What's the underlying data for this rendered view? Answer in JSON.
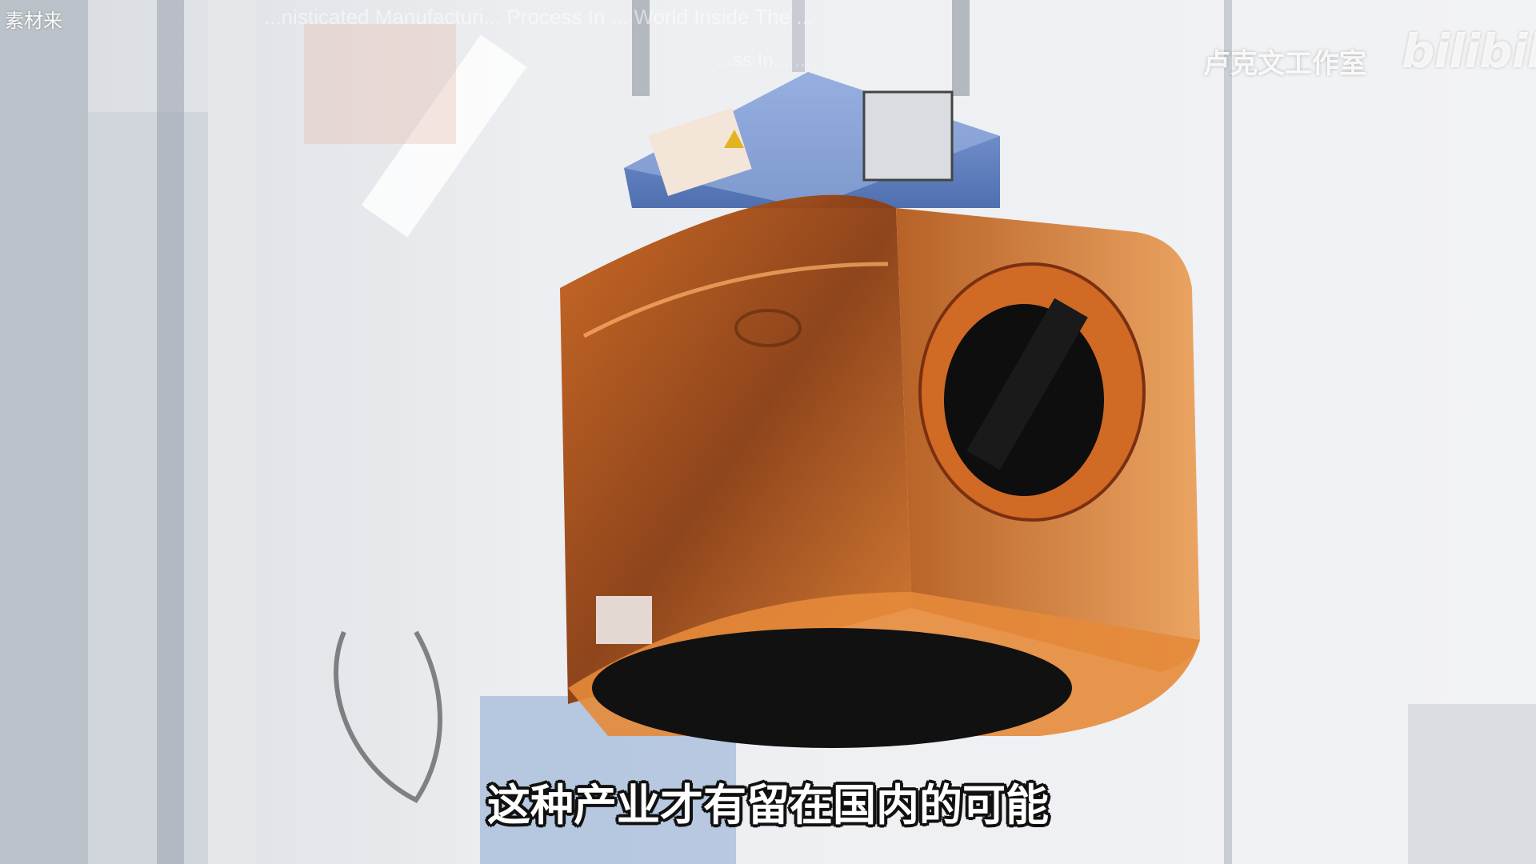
{
  "frame": {
    "source_fragment": "素材来",
    "title_overlay_line1": "...nisticated Manufacturi... Process In ... World Inside The ...",
    "title_overlay_line2": "...ss In... ...",
    "channel_watermark": "卢克文工作室",
    "platform_logo": "bilibili",
    "subtitle": "这种产业才有留在国内的可能"
  },
  "colors": {
    "pod_orange": "#e0792a",
    "carrier_blue": "#6f8fcf",
    "cleanroom_wall": "#eef0f2"
  }
}
